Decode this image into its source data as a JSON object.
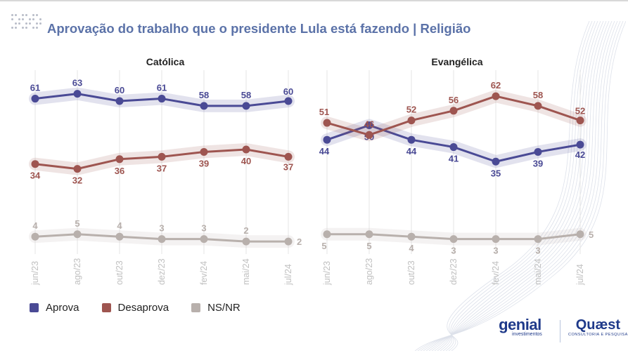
{
  "title": "Aprovação do trabalho que o presidente Lula está fazendo | Religião",
  "legend": [
    {
      "label": "Aprova",
      "color": "#4a4a95"
    },
    {
      "label": "Desaprova",
      "color": "#9e5550"
    },
    {
      "label": "NS/NR",
      "color": "#b8b0ac"
    }
  ],
  "brands": {
    "genial_name": "genial",
    "genial_sub": "investimentos",
    "quaest_name": "Quæst",
    "quaest_sub": "CONSULTORIA E PESQUISA"
  },
  "chart_data": [
    {
      "type": "line",
      "title": "Católica",
      "categories": [
        "jun/23",
        "ago/23",
        "out/23",
        "dez/23",
        "fev/24",
        "mai/24",
        "jul/24"
      ],
      "ylim": [
        0,
        70
      ],
      "grid": true,
      "series": [
        {
          "name": "Aprova",
          "color": "#4a4a95",
          "values": [
            61,
            63,
            60,
            61,
            58,
            58,
            60
          ],
          "label_pos": "above"
        },
        {
          "name": "Desaprova",
          "color": "#9e5550",
          "values": [
            34,
            32,
            36,
            37,
            39,
            40,
            37
          ],
          "label_pos": "below"
        },
        {
          "name": "NS/NR",
          "color": "#b8b0ac",
          "values": [
            4,
            5,
            4,
            3,
            3,
            2,
            2
          ],
          "label_pos": "above"
        }
      ]
    },
    {
      "type": "line",
      "title": "Evangélica",
      "categories": [
        "jun/23",
        "ago/23",
        "out/23",
        "dez/23",
        "fev/24",
        "mai/24",
        "jul/24"
      ],
      "ylim": [
        0,
        70
      ],
      "grid": true,
      "series": [
        {
          "name": "Aprova",
          "color": "#4a4a95",
          "values": [
            44,
            50,
            44,
            41,
            35,
            39,
            42
          ],
          "label_pos": "below"
        },
        {
          "name": "Desaprova",
          "color": "#9e5550",
          "values": [
            51,
            46,
            52,
            56,
            62,
            58,
            52
          ],
          "label_pos": "above"
        },
        {
          "name": "NS/NR",
          "color": "#b8b0ac",
          "values": [
            5,
            5,
            4,
            3,
            3,
            3,
            5
          ],
          "label_pos": "below"
        }
      ]
    }
  ]
}
